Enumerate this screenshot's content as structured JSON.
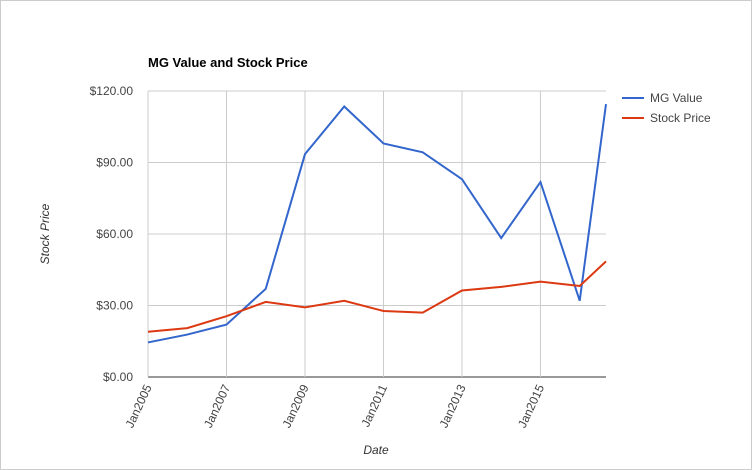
{
  "chart_data": {
    "type": "line",
    "title": "MG Value and Stock Price",
    "x_label": "Date",
    "y_label": "Stock Price",
    "x": [
      2005,
      2006,
      2007,
      2008,
      2009,
      2010,
      2011,
      2012,
      2013,
      2014,
      2015,
      2016,
      2016.67
    ],
    "series": [
      {
        "name": "MG Value",
        "color": "#3366cc",
        "values": [
          14.5,
          17.8,
          22,
          37,
          93.5,
          113.5,
          98,
          94.3,
          83,
          58.3,
          81.8,
          32,
          114.5
        ]
      },
      {
        "name": "Stock Price",
        "color": "#dc3912",
        "values": [
          19,
          20.5,
          25.5,
          31.5,
          29.2,
          32,
          27.7,
          27,
          36.3,
          37.8,
          40,
          38.2,
          48.5
        ]
      }
    ],
    "xlim": [
      2005,
      2016.67
    ],
    "xticks": [
      {
        "value": 2005,
        "label": "Jan2005"
      },
      {
        "value": 2007,
        "label": "Jan2007"
      },
      {
        "value": 2009,
        "label": "Jan2009"
      },
      {
        "value": 2011,
        "label": "Jan2011"
      },
      {
        "value": 2013,
        "label": "Jan2013"
      },
      {
        "value": 2015,
        "label": "Jan2015"
      }
    ],
    "ylim": [
      0,
      120
    ],
    "yticks": [
      {
        "value": 0,
        "label": "$0.00"
      },
      {
        "value": 30,
        "label": "$30.00"
      },
      {
        "value": 60,
        "label": "$60.00"
      },
      {
        "value": 90,
        "label": "$90.00"
      },
      {
        "value": 120,
        "label": "$120.00"
      }
    ],
    "grid": true,
    "legend": "right"
  }
}
